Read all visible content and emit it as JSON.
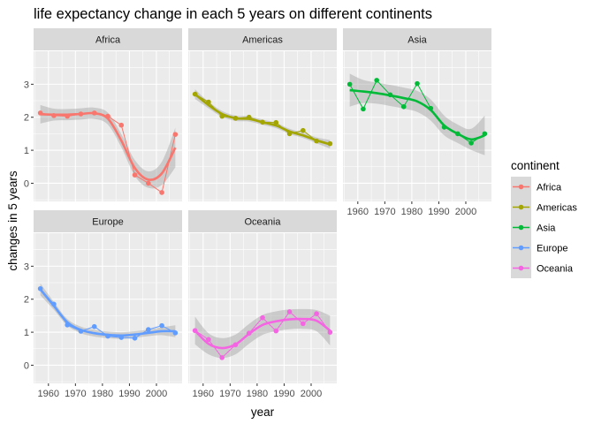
{
  "chart_data": {
    "type": "line",
    "title": "life expectancy change in each 5 years on different continents",
    "xlabel": "year",
    "ylabel": "changes in 5 years",
    "xlim": [
      1954.5,
      2009.5
    ],
    "ylim": [
      -0.55,
      4.0
    ],
    "x_ticks": [
      1960,
      1970,
      1980,
      1990,
      2000
    ],
    "y_ticks": [
      0,
      1,
      2,
      3
    ],
    "grid": true,
    "legend_title": "continent",
    "legend_position": "right",
    "facets": [
      "Africa",
      "Americas",
      "Asia",
      "Europe",
      "Oceania"
    ],
    "x": [
      1957,
      1962,
      1967,
      1972,
      1977,
      1982,
      1987,
      1992,
      1997,
      2002,
      2007
    ],
    "series": [
      {
        "name": "Africa",
        "color": "#F8766D",
        "values": [
          2.13,
          2.05,
          2.03,
          2.1,
          2.13,
          2.03,
          1.76,
          0.25,
          0.0,
          -0.28,
          1.48
        ],
        "smooth": [
          2.09,
          2.08,
          2.08,
          2.1,
          2.12,
          1.96,
          1.29,
          0.46,
          0.11,
          0.3,
          1.08
        ],
        "band": [
          0.28,
          0.18,
          0.17,
          0.17,
          0.17,
          0.18,
          0.2,
          0.24,
          0.25,
          0.35,
          0.6
        ]
      },
      {
        "name": "Americas",
        "color": "#A3A500",
        "values": [
          2.7,
          2.46,
          2.03,
          1.97,
          2.0,
          1.85,
          1.84,
          1.5,
          1.6,
          1.28,
          1.2
        ],
        "smooth": [
          2.7,
          2.37,
          2.1,
          1.97,
          1.95,
          1.85,
          1.75,
          1.57,
          1.45,
          1.3,
          1.18
        ],
        "band": [
          0.15,
          0.1,
          0.09,
          0.08,
          0.08,
          0.08,
          0.08,
          0.08,
          0.08,
          0.09,
          0.13
        ]
      },
      {
        "name": "Asia",
        "color": "#00BA38",
        "values": [
          3.0,
          2.25,
          3.12,
          2.68,
          2.32,
          3.02,
          2.27,
          1.7,
          1.5,
          1.22,
          1.5
        ],
        "smooth": [
          2.82,
          2.78,
          2.73,
          2.66,
          2.58,
          2.48,
          2.22,
          1.75,
          1.5,
          1.33,
          1.45
        ],
        "band": [
          0.5,
          0.35,
          0.32,
          0.32,
          0.32,
          0.32,
          0.32,
          0.3,
          0.28,
          0.32,
          0.6
        ]
      },
      {
        "name": "Europe",
        "color": "#619CFF",
        "values": [
          2.32,
          1.85,
          1.22,
          1.03,
          1.17,
          0.88,
          0.84,
          0.82,
          1.08,
          1.2,
          0.98
        ],
        "smooth": [
          2.3,
          1.8,
          1.3,
          1.07,
          0.97,
          0.92,
          0.9,
          0.93,
          0.98,
          1.03,
          1.03
        ],
        "band": [
          0.18,
          0.12,
          0.1,
          0.1,
          0.1,
          0.1,
          0.1,
          0.1,
          0.1,
          0.12,
          0.18
        ]
      },
      {
        "name": "Oceania",
        "color": "#F564E3",
        "values": [
          1.05,
          0.78,
          0.23,
          0.62,
          0.97,
          1.44,
          1.04,
          1.62,
          1.26,
          1.56,
          1.0
        ],
        "smooth": [
          1.05,
          0.65,
          0.52,
          0.63,
          0.95,
          1.22,
          1.33,
          1.39,
          1.4,
          1.35,
          1.05
        ],
        "band": [
          0.42,
          0.32,
          0.3,
          0.3,
          0.3,
          0.3,
          0.3,
          0.3,
          0.3,
          0.32,
          0.45
        ]
      }
    ]
  }
}
